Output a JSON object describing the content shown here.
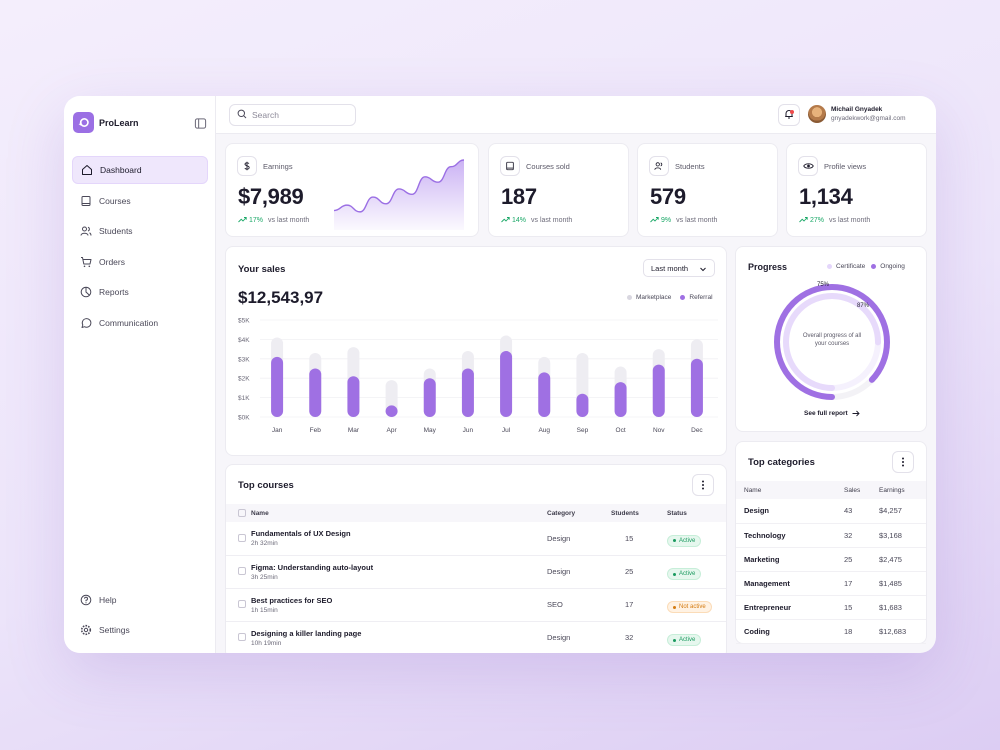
{
  "brand": {
    "name": "ProLearn"
  },
  "sidebar": {
    "items": [
      {
        "label": "Dashboard",
        "icon": "home-icon",
        "active": true
      },
      {
        "label": "Courses",
        "icon": "book-icon"
      },
      {
        "label": "Students",
        "icon": "users-icon"
      },
      {
        "label": "Orders",
        "icon": "cart-icon"
      },
      {
        "label": "Reports",
        "icon": "pie-chart-icon"
      },
      {
        "label": "Communication",
        "icon": "chat-icon"
      }
    ],
    "bottom": [
      {
        "label": "Help",
        "icon": "help-icon"
      },
      {
        "label": "Settings",
        "icon": "gear-icon"
      }
    ]
  },
  "search": {
    "placeholder": "Search"
  },
  "user": {
    "name": "Michail Gnyadek",
    "email": "gnyadekwork@gmail.com"
  },
  "stats": [
    {
      "title": "Earnings",
      "value": "$7,989",
      "change": "17%",
      "suffix": "vs last month",
      "icon": "dollar-icon"
    },
    {
      "title": "Courses sold",
      "value": "187",
      "change": "14%",
      "suffix": "vs last month",
      "icon": "book-icon"
    },
    {
      "title": "Students",
      "value": "579",
      "change": "9%",
      "suffix": "vs last month",
      "icon": "users-icon"
    },
    {
      "title": "Profile views",
      "value": "1,134",
      "change": "27%",
      "suffix": "vs last month",
      "icon": "eye-icon"
    }
  ],
  "earnings_sparkline": [
    20,
    28,
    18,
    40,
    30,
    52,
    44,
    70,
    62,
    85,
    95
  ],
  "sales": {
    "title": "Your sales",
    "period": "Last month",
    "total": "$12,543,97",
    "legend": [
      "Marketplace",
      "Referral"
    ]
  },
  "chart_data": {
    "type": "bar",
    "title": "Your sales",
    "categories": [
      "Jan",
      "Feb",
      "Mar",
      "Apr",
      "May",
      "Jun",
      "Jul",
      "Aug",
      "Sep",
      "Oct",
      "Nov",
      "Dec"
    ],
    "y_ticks": [
      "$0K",
      "$1K",
      "$2K",
      "$3K",
      "$4K",
      "$5K"
    ],
    "ylim": [
      0,
      5000
    ],
    "series": [
      {
        "name": "Marketplace",
        "color": "#eeedf2",
        "values": [
          4100,
          3300,
          3600,
          1900,
          2500,
          3400,
          4200,
          3100,
          3300,
          2600,
          3500,
          4000
        ]
      },
      {
        "name": "Referral",
        "color": "#9f70e3",
        "values": [
          3100,
          2500,
          2100,
          600,
          2000,
          2500,
          3400,
          2300,
          1200,
          1800,
          2700,
          3000
        ]
      }
    ],
    "legend": "top-right",
    "grid": true
  },
  "progress": {
    "title": "Progress",
    "legend": [
      "Certificate",
      "Ongoing"
    ],
    "certificate_pct": 75,
    "ongoing_pct": 87,
    "certificate_label": "75%",
    "ongoing_label": "87%",
    "center_text": "Overall progress of all your courses",
    "link": "See full report"
  },
  "top_courses": {
    "title": "Top courses",
    "columns": [
      "Name",
      "Category",
      "Students",
      "Status"
    ],
    "rows": [
      {
        "name": "Fundamentals of UX Design",
        "duration": "2h 32min",
        "category": "Design",
        "students": "15",
        "status": "Active"
      },
      {
        "name": "Figma: Understanding auto-layout",
        "duration": "3h 25min",
        "category": "Design",
        "students": "25",
        "status": "Active"
      },
      {
        "name": "Best practices for SEO",
        "duration": "1h 15min",
        "category": "SEO",
        "students": "17",
        "status": "Not active"
      },
      {
        "name": "Designing a killer landing page",
        "duration": "10h 19min",
        "category": "Design",
        "students": "32",
        "status": "Active"
      }
    ]
  },
  "top_categories": {
    "title": "Top categories",
    "columns": [
      "Name",
      "Sales",
      "Earnings"
    ],
    "rows": [
      {
        "name": "Design",
        "sales": "43",
        "earnings": "$4,257"
      },
      {
        "name": "Technology",
        "sales": "32",
        "earnings": "$3,168"
      },
      {
        "name": "Marketing",
        "sales": "25",
        "earnings": "$2,475"
      },
      {
        "name": "Management",
        "sales": "17",
        "earnings": "$1,485"
      },
      {
        "name": "Entrepreneur",
        "sales": "15",
        "earnings": "$1,683"
      },
      {
        "name": "Coding",
        "sales": "18",
        "earnings": "$12,683"
      }
    ]
  },
  "colors": {
    "accent": "#9b6fe4",
    "accent_light": "#e8dcfb",
    "positive": "#1aa867"
  }
}
